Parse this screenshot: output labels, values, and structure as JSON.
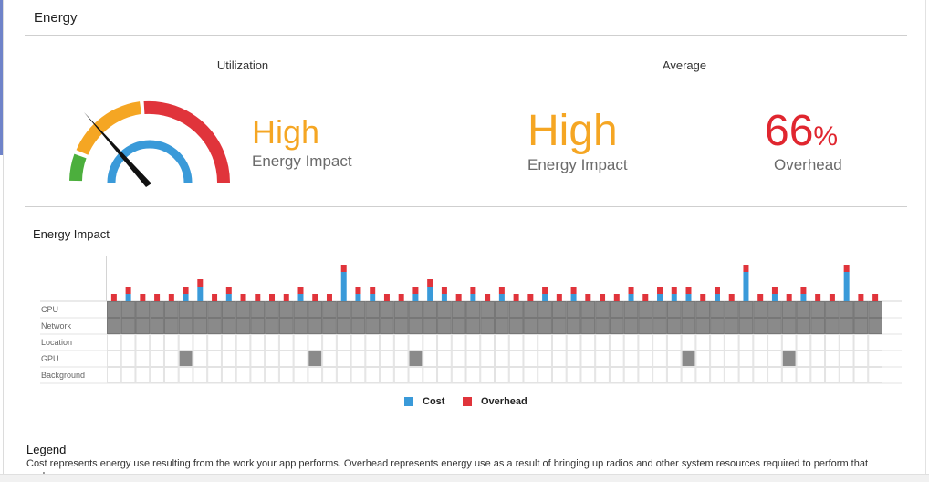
{
  "panel": {
    "title": "Energy"
  },
  "utilization": {
    "heading": "Utilization",
    "level": "High",
    "caption": "Energy Impact",
    "level_color": "#f5a623"
  },
  "average": {
    "heading": "Average",
    "level": "High",
    "caption": "Energy Impact",
    "level_color": "#f5a623",
    "overhead_value": "66",
    "overhead_unit": "%",
    "overhead_caption": "Overhead",
    "overhead_color": "#e0262f"
  },
  "chart_data": {
    "type": "bar",
    "title": "Energy Impact",
    "row_labels": [
      "CPU",
      "Network",
      "Location",
      "GPU",
      "Background"
    ],
    "series": [
      {
        "name": "Cost",
        "color": "#3a9ad9",
        "values": [
          0,
          1,
          0,
          0,
          0,
          1,
          2,
          0,
          1,
          0,
          0,
          0,
          0,
          1,
          0,
          0,
          4,
          1,
          1,
          0,
          0,
          1,
          2,
          1,
          0,
          1,
          0,
          1,
          0,
          0,
          1,
          0,
          1,
          0,
          0,
          0,
          1,
          0,
          1,
          1,
          1,
          0,
          1,
          0,
          4,
          0,
          1,
          0,
          1,
          0,
          0,
          4,
          0,
          0
        ]
      },
      {
        "name": "Overhead",
        "color": "#e0343b",
        "values": [
          1,
          1,
          1,
          1,
          1,
          1,
          1,
          1,
          1,
          1,
          1,
          1,
          1,
          1,
          1,
          1,
          1,
          1,
          1,
          1,
          1,
          1,
          1,
          1,
          1,
          1,
          1,
          1,
          1,
          1,
          1,
          1,
          1,
          1,
          1,
          1,
          1,
          1,
          1,
          1,
          1,
          1,
          1,
          1,
          1,
          1,
          1,
          1,
          1,
          1,
          1,
          1,
          1,
          1
        ]
      }
    ],
    "gpu_active": [
      5,
      14,
      21,
      40,
      47
    ]
  },
  "legend_note": {
    "title": "Legend",
    "text": "Cost represents energy use resulting from the work your app performs. Overhead represents energy use as a result of bringing up radios and other system resources required to perform that work."
  },
  "colors": {
    "gauge_green": "#4caf3d",
    "gauge_yellow": "#f5a623",
    "gauge_red": "#e0343b",
    "gauge_blue": "#3a9ad9",
    "needle": "#111111",
    "grid_fill": "#8a8a8a"
  }
}
